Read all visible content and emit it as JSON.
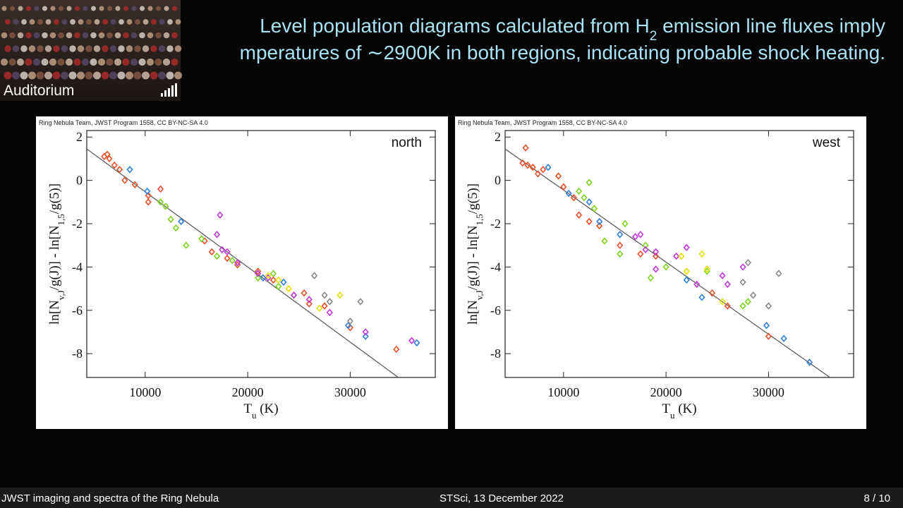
{
  "slide": {
    "title_line1_before": "Level population diagrams calculated from H",
    "title_line1_sub": "2",
    "title_line1_after": " emission line fluxes imply",
    "title_line2": "mperatures of ∼2900K in both regions, indicating probable shock heating.",
    "camera_label": "Auditorium",
    "footer_left": "JWST imaging and spectra of the Ring Nebula",
    "footer_center": "STSci, 13 December 2022",
    "footer_right": "8 / 10"
  },
  "chart_data": [
    {
      "type": "scatter",
      "credit": "Ring Nebula Team, JWST Program 1558, CC BY-NC-SA 4.0",
      "panel_label": "north",
      "x_label": [
        "T",
        "u",
        " (K)"
      ],
      "y_label": [
        "ln[N",
        "v,J",
        "/g(J)] - ln[N",
        "1,5",
        "/g(5)]"
      ],
      "xlim": [
        4300,
        38300
      ],
      "ylim": [
        -9.1,
        2.3
      ],
      "xticks": [
        10000,
        20000,
        30000
      ],
      "yticks": [
        -8,
        -6,
        -4,
        -2,
        0,
        2
      ],
      "grid": false,
      "fit": {
        "color": "#555555",
        "x": [
          4300,
          34700
        ],
        "values": [
          1.45,
          -9.1
        ]
      },
      "series": [
        {
          "color": "#e8502a",
          "x": [
            6000,
            6300,
            6500,
            7000,
            7500,
            8000,
            9000,
            10300,
            10300,
            11500,
            15800,
            16500,
            18000,
            19000,
            21000,
            22500,
            25500,
            26000,
            27500,
            30000,
            34500
          ],
          "values": [
            1.1,
            1.2,
            1.0,
            0.7,
            0.5,
            0,
            -0.2,
            -0.7,
            -1,
            -0.4,
            -2.8,
            -3.3,
            -3.6,
            -3.9,
            -4.2,
            -4.6,
            -5.2,
            -5.7,
            -5.8,
            -6.8,
            -7.8
          ]
        },
        {
          "color": "#2f7fd8",
          "x": [
            8500,
            10200,
            13500,
            21500,
            23500,
            29800,
            31500,
            36500
          ],
          "values": [
            0.5,
            -0.5,
            -1.9,
            -4.5,
            -4.7,
            -6.7,
            -7.2,
            -7.5
          ]
        },
        {
          "color": "#7ed321",
          "x": [
            11500,
            12000,
            12500,
            13000,
            14000,
            15500,
            17000,
            18500,
            21000,
            22500,
            23000,
            24500
          ],
          "values": [
            -1.0,
            -1.2,
            -1.8,
            -2.2,
            -3.0,
            -2.7,
            -3.5,
            -3.7,
            -4.5,
            -4.3,
            -4.9,
            -5.3
          ]
        },
        {
          "color": "#c03ad8",
          "x": [
            17000,
            17300,
            17500,
            18000,
            19000,
            21000,
            22000,
            24500,
            26000,
            28000,
            31500,
            36000
          ],
          "values": [
            -2.5,
            -1.6,
            -3.2,
            -3.3,
            -3.8,
            -4.3,
            -4.5,
            -5.3,
            -5.5,
            -6.1,
            -7.0,
            -7.4
          ]
        },
        {
          "color": "#e6e000",
          "x": [
            22000,
            23000,
            24000,
            27000,
            29000
          ],
          "values": [
            -4.4,
            -4.6,
            -5.0,
            -5.9,
            -5.3
          ]
        },
        {
          "color": "#8a8a8a",
          "x": [
            26500,
            27500,
            28000,
            30000,
            31000
          ],
          "values": [
            -4.4,
            -5.3,
            -5.6,
            -6.5,
            -5.6
          ]
        }
      ]
    },
    {
      "type": "scatter",
      "credit": "Ring Nebula Team, JWST Program 1558, CC BY-NC-SA 4.0",
      "panel_label": "west",
      "x_label": [
        "T",
        "u",
        " (K)"
      ],
      "y_label": [
        "ln[N",
        "v,J",
        "/g(J)] - ln[N",
        "1,5",
        "/g(5)]"
      ],
      "xlim": [
        4300,
        38300
      ],
      "ylim": [
        -9.1,
        2.3
      ],
      "xticks": [
        10000,
        20000,
        30000
      ],
      "yticks": [
        -8,
        -6,
        -4,
        -2,
        0,
        2
      ],
      "grid": false,
      "fit": {
        "color": "#555555",
        "x": [
          4300,
          36000
        ],
        "values": [
          1.45,
          -9.1
        ]
      },
      "series": [
        {
          "color": "#e8502a",
          "x": [
            6000,
            6300,
            6500,
            7000,
            7500,
            8000,
            9500,
            10000,
            11000,
            11500,
            12500,
            13500,
            15500,
            17500,
            19000,
            24500,
            26000,
            30000
          ],
          "values": [
            0.8,
            1.5,
            0.7,
            0.6,
            0.3,
            0.5,
            0.2,
            -0.3,
            -0.8,
            -1.6,
            -1.9,
            -2.1,
            -3.0,
            -3.4,
            -3.5,
            -5.2,
            -5.8,
            -7.2
          ]
        },
        {
          "color": "#2f7fd8",
          "x": [
            8500,
            10500,
            12500,
            13500,
            15500,
            22000,
            23500,
            29800,
            31500,
            34000
          ],
          "values": [
            0.6,
            -0.6,
            -1.0,
            -1.9,
            -2.5,
            -4.6,
            -5.4,
            -6.7,
            -7.3,
            -8.4
          ]
        },
        {
          "color": "#7ed321",
          "x": [
            11500,
            12000,
            12500,
            13000,
            14000,
            15500,
            16000,
            18000,
            18500,
            20000,
            24000,
            27500,
            28000
          ],
          "values": [
            -0.5,
            -0.8,
            -0.1,
            -1.3,
            -2.8,
            -3.4,
            -2.0,
            -3.0,
            -4.5,
            -4.0,
            -4.2,
            -5.8,
            -5.6
          ]
        },
        {
          "color": "#c03ad8",
          "x": [
            17000,
            17500,
            18000,
            19000,
            19000,
            21000,
            22000,
            23000,
            25500,
            26000,
            27500
          ],
          "values": [
            -2.6,
            -2.5,
            -3.2,
            -3.3,
            -4.1,
            -3.5,
            -3.1,
            -4.8,
            -4.4,
            -4.8,
            -4.0
          ]
        },
        {
          "color": "#e6e000",
          "x": [
            21500,
            22000,
            23500,
            24000,
            25500
          ],
          "values": [
            -3.5,
            -4.2,
            -3.4,
            -4.1,
            -5.6
          ]
        },
        {
          "color": "#8a8a8a",
          "x": [
            27500,
            28000,
            28500,
            30000,
            31000
          ],
          "values": [
            -4.7,
            -3.8,
            -5.3,
            -5.8,
            -4.3
          ]
        }
      ]
    }
  ]
}
